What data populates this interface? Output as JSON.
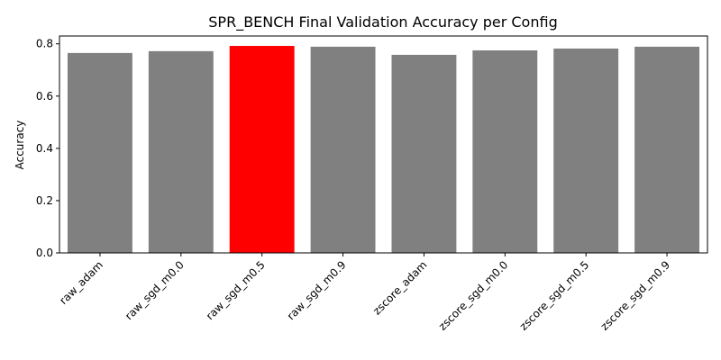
{
  "chart_data": {
    "type": "bar",
    "title": "SPR_BENCH Final Validation Accuracy per Config",
    "xlabel": "",
    "ylabel": "Accuracy",
    "ylim": [
      0,
      0.83
    ],
    "yticks": [
      "0.0",
      "0.2",
      "0.4",
      "0.6",
      "0.8"
    ],
    "grid": false,
    "categories": [
      "raw_adam",
      "raw_sgd_m0.0",
      "raw_sgd_m0.5",
      "raw_sgd_m0.9",
      "zscore_adam",
      "zscore_sgd_m0.0",
      "zscore_sgd_m0.5",
      "zscore_sgd_m0.9"
    ],
    "values": [
      0.765,
      0.772,
      0.792,
      0.789,
      0.758,
      0.775,
      0.782,
      0.789
    ],
    "colors": [
      "#808080",
      "#808080",
      "#ff0000",
      "#808080",
      "#808080",
      "#808080",
      "#808080",
      "#808080"
    ],
    "highlight_index": 2
  }
}
